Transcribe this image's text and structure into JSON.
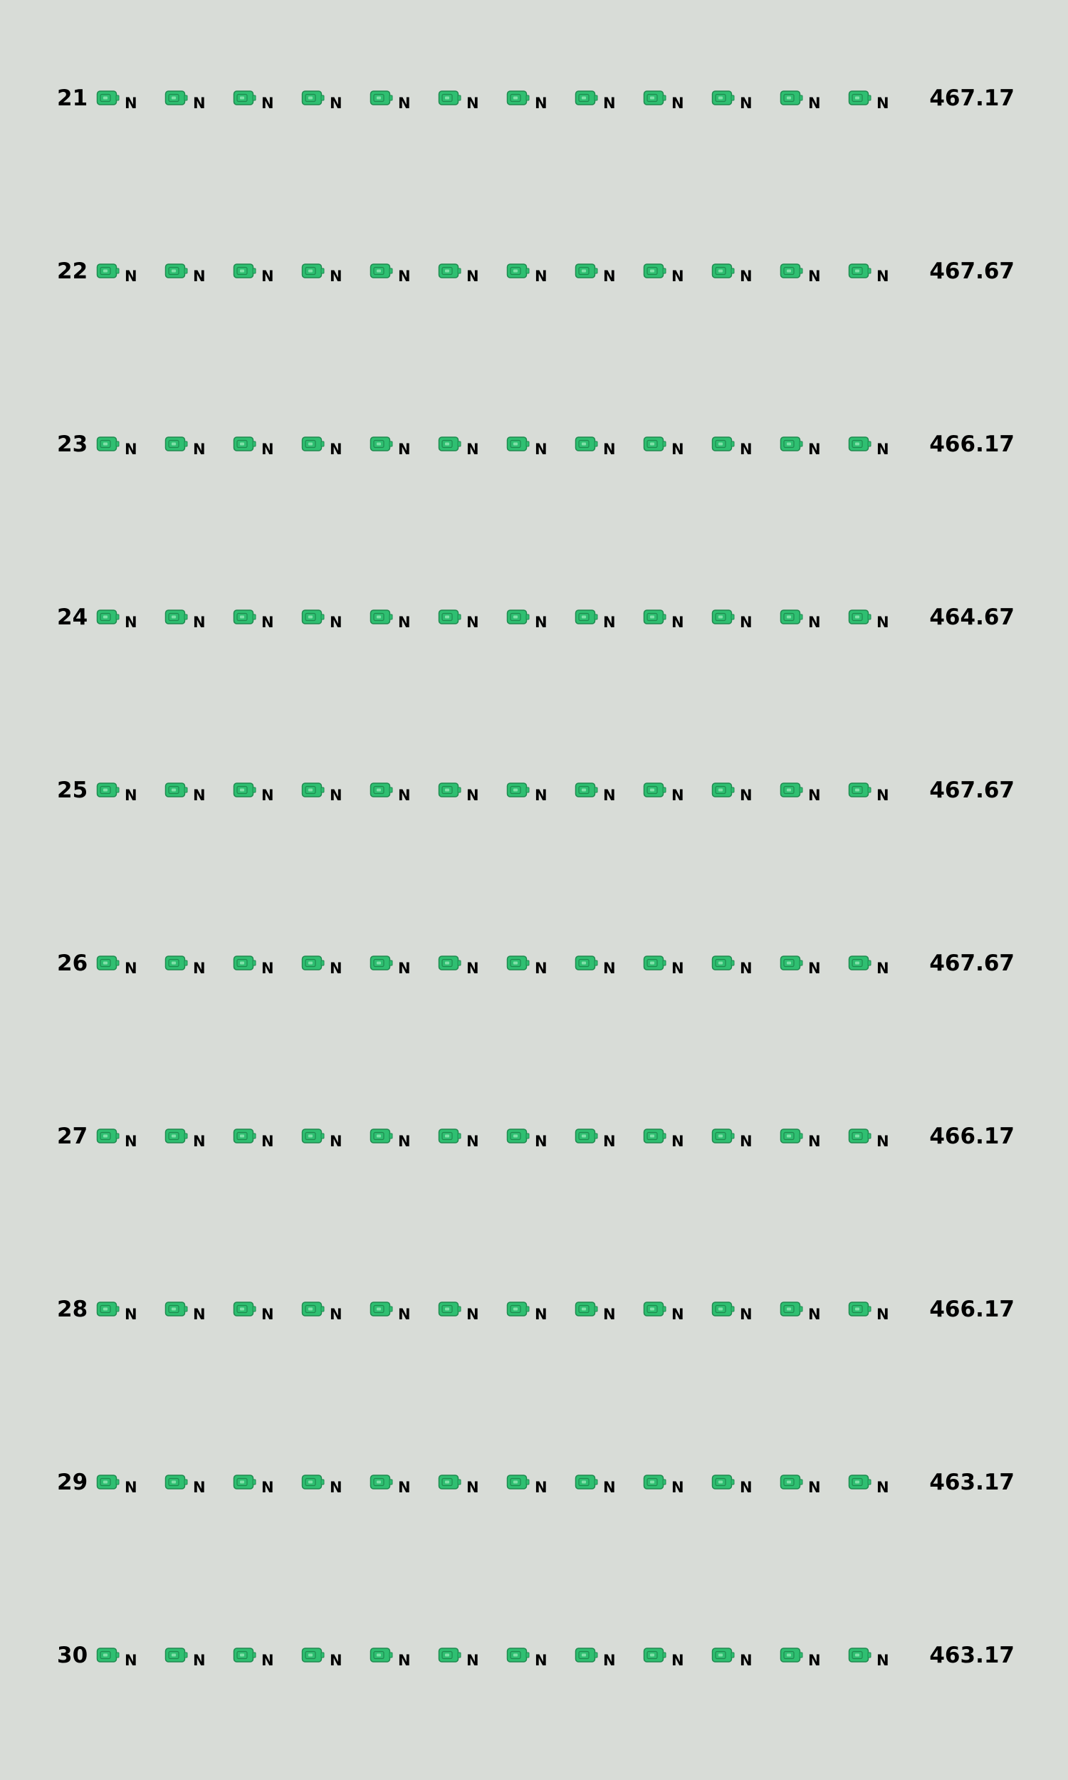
{
  "icon": {
    "name": "battery-icon",
    "fill": "#2fbf71",
    "stroke": "#1e8a4f",
    "highlight": "#7fe0a8"
  },
  "cells_per_row": 12,
  "cell_label": "N",
  "rows": [
    {
      "number": "21",
      "total": "467.17"
    },
    {
      "number": "22",
      "total": "467.67"
    },
    {
      "number": "23",
      "total": "466.17"
    },
    {
      "number": "24",
      "total": "464.67"
    },
    {
      "number": "25",
      "total": "467.67"
    },
    {
      "number": "26",
      "total": "467.67"
    },
    {
      "number": "27",
      "total": "466.17"
    },
    {
      "number": "28",
      "total": "466.17"
    },
    {
      "number": "29",
      "total": "463.17"
    },
    {
      "number": "30",
      "total": "463.17"
    }
  ]
}
